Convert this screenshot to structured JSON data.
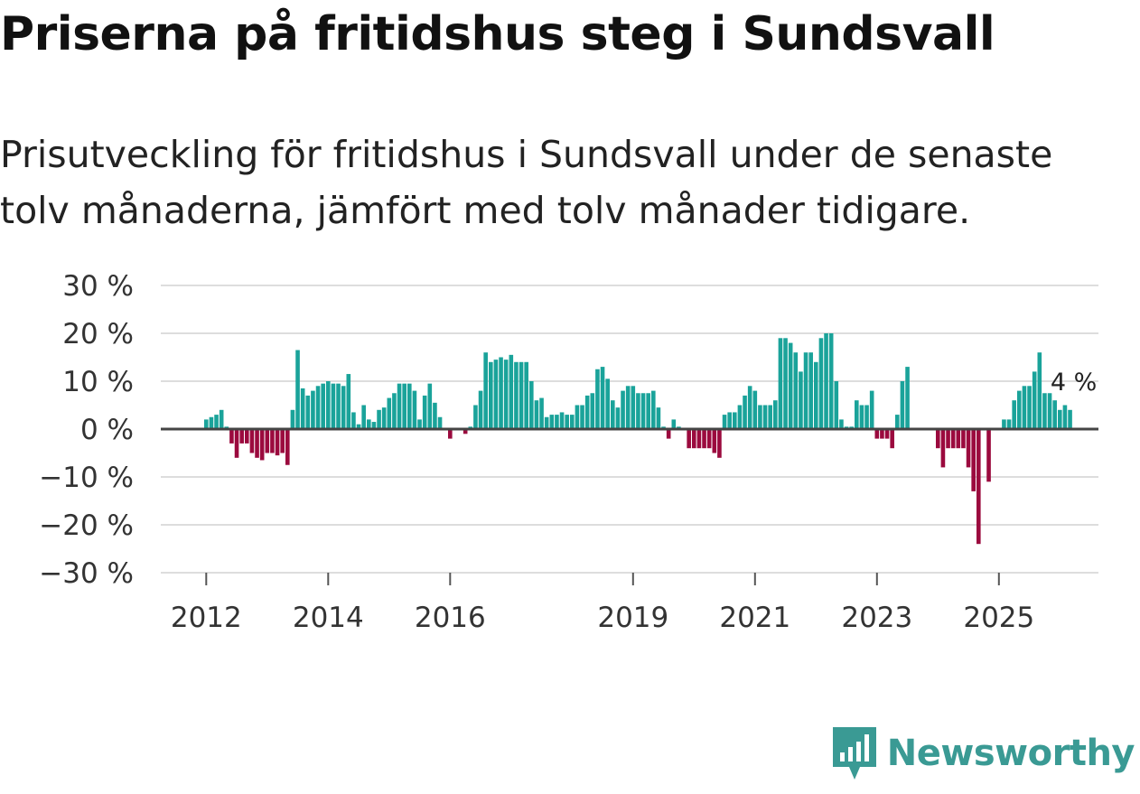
{
  "header": {
    "title": "Priserna på fritidshus steg i Sundsvall",
    "subtitle": "Prisutveckling för fritidshus i Sundsvall under de senaste tolv månaderna, jämfört med tolv månader tidigare."
  },
  "brand": {
    "name": "Newsworthy",
    "color": "#3a9a94"
  },
  "colors": {
    "positive": "#1aa39a",
    "negative": "#9b0a3e",
    "grid": "#dddddd",
    "zero": "#444444"
  },
  "chart_data": {
    "type": "bar",
    "title": "Priserna på fritidshus steg i Sundsvall",
    "xlabel": "",
    "ylabel": "",
    "ylim": [
      -30,
      30
    ],
    "y_ticks": [
      30,
      20,
      10,
      0,
      -10,
      -20,
      -30
    ],
    "y_tick_labels": [
      "30 %",
      "20 %",
      "10 %",
      "0 %",
      "−10 %",
      "−20 %",
      "−30 %"
    ],
    "x_ticks": [
      {
        "label": "2012",
        "index": 0
      },
      {
        "label": "2014",
        "index": 24
      },
      {
        "label": "2016",
        "index": 48
      },
      {
        "label": "2019",
        "index": 84
      },
      {
        "label": "2021",
        "index": 108
      },
      {
        "label": "2023",
        "index": 132
      },
      {
        "label": "2025",
        "index": 156
      }
    ],
    "start": "2012-01",
    "end_label": "4 %",
    "values": [
      2,
      2.5,
      3,
      4,
      0.5,
      -3,
      -6,
      -3,
      -3,
      -5,
      -6,
      -6.5,
      -5,
      -5,
      -5.5,
      -5,
      -7.5,
      4,
      16.5,
      8.5,
      7,
      8,
      9,
      9.5,
      10,
      9.5,
      9.5,
      9,
      11.5,
      3.5,
      1,
      5,
      2,
      1.5,
      4,
      4.5,
      6.5,
      7.5,
      9.5,
      9.5,
      9.5,
      8,
      2,
      7,
      9.5,
      5.5,
      2.5,
      0,
      -2,
      0,
      0,
      -1,
      0.5,
      5,
      8,
      16,
      14,
      14.5,
      15,
      14.5,
      15.5,
      14,
      14,
      14,
      10,
      6,
      6.5,
      2.5,
      3,
      3,
      3.5,
      3,
      3,
      5,
      5,
      7,
      7.5,
      12.5,
      13,
      10.5,
      6,
      4.5,
      8,
      9,
      9,
      7.5,
      7.5,
      7.5,
      8,
      4.5,
      0.5,
      -2,
      2,
      0.5,
      0,
      -4,
      -4,
      -4,
      -4,
      -4,
      -5,
      -6,
      3,
      3.5,
      3.5,
      5,
      7,
      9,
      8,
      5,
      5,
      5,
      6,
      19,
      19,
      18,
      16,
      12,
      16,
      16,
      14,
      19,
      20,
      20,
      10,
      2,
      0.5,
      0.5,
      6,
      5,
      5,
      8,
      -2,
      -2,
      -2,
      -4,
      3,
      10,
      13,
      0,
      0,
      0,
      0,
      0,
      -4,
      -8,
      -4,
      -4,
      -4,
      -4,
      -8,
      -13,
      -24,
      0,
      -11,
      0,
      0,
      2,
      2,
      6,
      8,
      9,
      9,
      12,
      16,
      7.5,
      7.5,
      6,
      4,
      5,
      4
    ]
  }
}
